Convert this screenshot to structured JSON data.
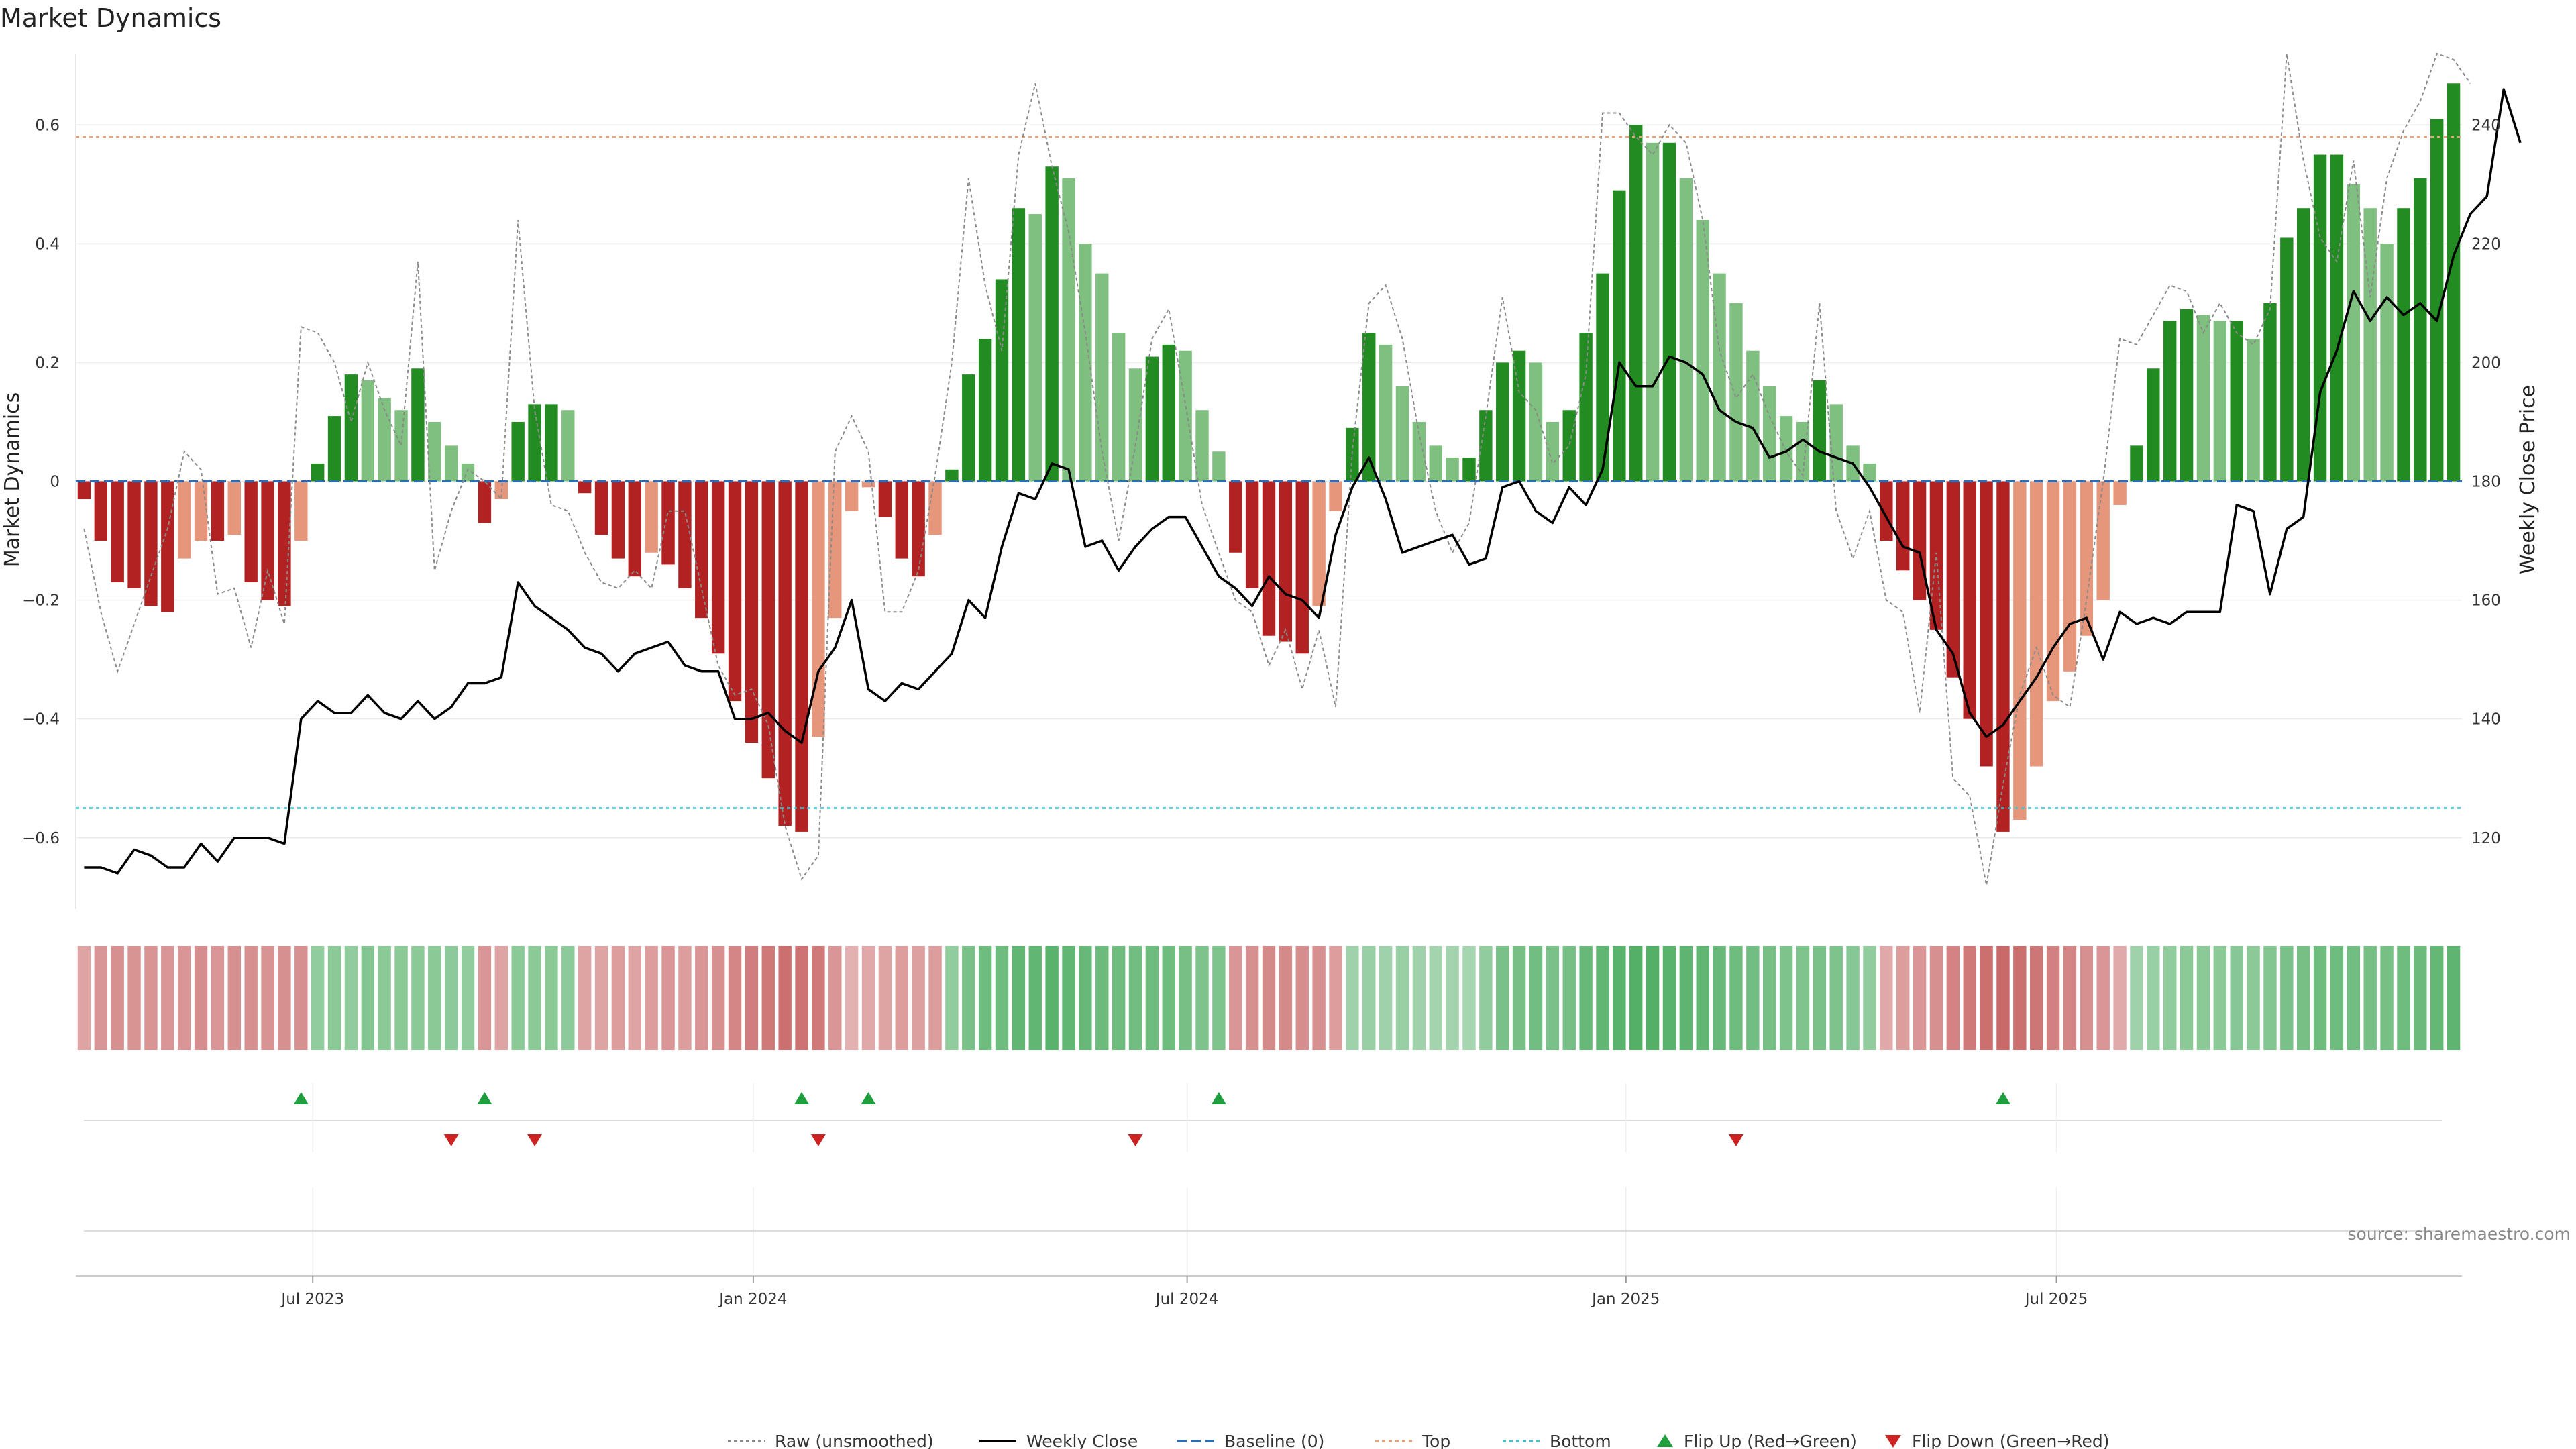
{
  "chart_data": {
    "type": "bar",
    "title": "Market Dynamics",
    "ylabel_left": "Market Dynamics",
    "ylabel_right": "Weekly Close Price",
    "left_ylim": [
      -0.72,
      0.72
    ],
    "right_ylim": [
      108,
      252
    ],
    "left_ticks": [
      -0.6,
      -0.4,
      -0.2,
      0,
      0.2,
      0.4,
      0.6
    ],
    "left_tick_labels": [
      "−0.6",
      "−0.4",
      "−0.2",
      "0",
      "0.2",
      "0.4",
      "0.6"
    ],
    "right_ticks": [
      120,
      140,
      160,
      180,
      200,
      220,
      240
    ],
    "right_tick_labels": [
      "120",
      "140",
      "160",
      "180",
      "200",
      "220",
      "240"
    ],
    "start_date": "2023-03-26",
    "x_ticks": [
      {
        "label": "Jul 2023",
        "week": 14.2
      },
      {
        "label": "Jan 2024",
        "week": 40.6
      },
      {
        "label": "Jul 2024",
        "week": 66.6
      },
      {
        "label": "Jan 2025",
        "week": 92.9
      },
      {
        "label": "Jul 2025",
        "week": 118.7
      }
    ],
    "top_level": 0.58,
    "bottom_level": -0.55,
    "baseline": 0,
    "smoothed": [
      -0.03,
      -0.1,
      -0.17,
      -0.18,
      -0.21,
      -0.22,
      -0.13,
      -0.1,
      -0.1,
      -0.09,
      -0.17,
      -0.2,
      -0.21,
      -0.1,
      0.03,
      0.11,
      0.18,
      0.17,
      0.14,
      0.12,
      0.19,
      0.1,
      0.06,
      0.03,
      -0.07,
      -0.03,
      0.1,
      0.13,
      0.13,
      0.12,
      -0.02,
      -0.09,
      -0.13,
      -0.16,
      -0.12,
      -0.14,
      -0.18,
      -0.23,
      -0.29,
      -0.37,
      -0.44,
      -0.5,
      -0.58,
      -0.59,
      -0.43,
      -0.23,
      -0.05,
      -0.01,
      -0.06,
      -0.13,
      -0.16,
      -0.09,
      0.02,
      0.18,
      0.24,
      0.34,
      0.46,
      0.45,
      0.53,
      0.51,
      0.4,
      0.35,
      0.25,
      0.19,
      0.21,
      0.23,
      0.22,
      0.12,
      0.05,
      -0.12,
      -0.18,
      -0.26,
      -0.27,
      -0.29,
      -0.21,
      -0.05,
      0.09,
      0.25,
      0.23,
      0.16,
      0.1,
      0.06,
      0.04,
      0.04,
      0.12,
      0.2,
      0.22,
      0.2,
      0.1,
      0.12,
      0.25,
      0.35,
      0.49,
      0.6,
      0.57,
      0.57,
      0.51,
      0.44,
      0.35,
      0.3,
      0.22,
      0.16,
      0.11,
      0.1,
      0.17,
      0.13,
      0.06,
      0.03,
      -0.1,
      -0.15,
      -0.2,
      -0.25,
      -0.33,
      -0.4,
      -0.48,
      -0.59,
      -0.57,
      -0.48,
      -0.37,
      -0.32,
      -0.26,
      -0.2,
      -0.04,
      0.06,
      0.19,
      0.27,
      0.29,
      0.28,
      0.27,
      0.27,
      0.24,
      0.3,
      0.41,
      0.46,
      0.55,
      0.55,
      0.5,
      0.46,
      0.4,
      0.46,
      0.51,
      0.61,
      0.67
    ],
    "raw": [
      -0.08,
      -0.22,
      -0.32,
      -0.24,
      -0.16,
      -0.08,
      0.05,
      0.02,
      -0.19,
      -0.18,
      -0.28,
      -0.15,
      -0.24,
      0.26,
      0.25,
      0.2,
      0.1,
      0.2,
      0.12,
      0.06,
      0.37,
      -0.15,
      -0.05,
      0.02,
      0.0,
      -0.03,
      0.44,
      0.12,
      -0.04,
      -0.05,
      -0.12,
      -0.17,
      -0.18,
      -0.15,
      -0.18,
      -0.05,
      -0.05,
      -0.18,
      -0.31,
      -0.36,
      -0.35,
      -0.41,
      -0.58,
      -0.67,
      -0.63,
      0.05,
      0.11,
      0.05,
      -0.22,
      -0.22,
      -0.15,
      0.01,
      0.2,
      0.51,
      0.33,
      0.22,
      0.55,
      0.67,
      0.53,
      0.42,
      0.25,
      0.05,
      -0.1,
      0.06,
      0.24,
      0.29,
      0.13,
      -0.04,
      -0.12,
      -0.2,
      -0.22,
      -0.31,
      -0.25,
      -0.35,
      -0.25,
      -0.38,
      0.05,
      0.3,
      0.33,
      0.24,
      0.08,
      -0.05,
      -0.12,
      -0.07,
      0.11,
      0.31,
      0.15,
      0.12,
      0.03,
      0.06,
      0.18,
      0.62,
      0.62,
      0.58,
      0.55,
      0.6,
      0.57,
      0.44,
      0.22,
      0.14,
      0.18,
      0.11,
      0.05,
      0.01,
      0.3,
      -0.05,
      -0.13,
      -0.05,
      -0.2,
      -0.22,
      -0.39,
      -0.12,
      -0.5,
      -0.53,
      -0.68,
      -0.51,
      -0.36,
      -0.28,
      -0.36,
      -0.38,
      -0.2,
      0.0,
      0.24,
      0.23,
      0.28,
      0.33,
      0.32,
      0.25,
      0.3,
      0.25,
      0.23,
      0.29,
      0.72,
      0.54,
      0.41,
      0.37,
      0.54,
      0.31,
      0.51,
      0.59,
      0.64,
      0.72,
      0.71,
      0.67
    ],
    "close": [
      115,
      115,
      114,
      118,
      117,
      115,
      115,
      119,
      116,
      120,
      120,
      120,
      119,
      140,
      143,
      141,
      141,
      144,
      141,
      140,
      143,
      140,
      142,
      146,
      146,
      147,
      163,
      159,
      157,
      155,
      152,
      151,
      148,
      151,
      152,
      153,
      149,
      148,
      148,
      140,
      140,
      141,
      138,
      136,
      148,
      152,
      160,
      145,
      143,
      146,
      145,
      148,
      151,
      160,
      157,
      169,
      178,
      177,
      183,
      182,
      169,
      170,
      165,
      169,
      172,
      174,
      174,
      169,
      164,
      162,
      159,
      164,
      161,
      160,
      157,
      171,
      179,
      184,
      177,
      168,
      169,
      170,
      171,
      166,
      167,
      179,
      180,
      175,
      173,
      179,
      176,
      182,
      200,
      196,
      196,
      201,
      200,
      198,
      192,
      190,
      189,
      184,
      185,
      187,
      185,
      184,
      183,
      179,
      174,
      169,
      168,
      155,
      151,
      141,
      137,
      139,
      143,
      147,
      152,
      156,
      157,
      150,
      158,
      156,
      157,
      156,
      158,
      158,
      158,
      176,
      175,
      161,
      172,
      174,
      195,
      202,
      212,
      207,
      211,
      208,
      210,
      207,
      218,
      225,
      228,
      246,
      237
    ],
    "strength": [
      0.45,
      0.56,
      0.6,
      0.58,
      0.57,
      0.55,
      0.55,
      0.62,
      0.55,
      0.6,
      0.6,
      0.58,
      0.6,
      0.6,
      0.55,
      0.6,
      0.55,
      0.65,
      0.6,
      0.6,
      0.6,
      0.6,
      0.58,
      0.55,
      0.55,
      0.45,
      0.6,
      0.6,
      0.6,
      0.58,
      0.45,
      0.45,
      0.5,
      0.45,
      0.5,
      0.55,
      0.5,
      0.55,
      0.6,
      0.68,
      0.75,
      0.78,
      0.85,
      0.82,
      0.78,
      0.55,
      0.35,
      0.42,
      0.45,
      0.5,
      0.48,
      0.5,
      0.55,
      0.72,
      0.8,
      0.8,
      0.9,
      0.9,
      0.95,
      0.9,
      0.85,
      0.82,
      0.8,
      0.78,
      0.8,
      0.8,
      0.75,
      0.7,
      0.68,
      0.55,
      0.6,
      0.65,
      0.65,
      0.62,
      0.6,
      0.5,
      0.45,
      0.5,
      0.45,
      0.5,
      0.45,
      0.42,
      0.42,
      0.4,
      0.55,
      0.72,
      0.75,
      0.78,
      0.72,
      0.75,
      0.85,
      0.9,
      0.95,
      1.0,
      1.0,
      0.95,
      0.92,
      0.9,
      0.85,
      0.8,
      0.78,
      0.75,
      0.7,
      0.68,
      0.72,
      0.7,
      0.62,
      0.55,
      0.42,
      0.5,
      0.55,
      0.6,
      0.7,
      0.78,
      0.85,
      0.9,
      0.85,
      0.8,
      0.72,
      0.68,
      0.6,
      0.55,
      0.4,
      0.45,
      0.5,
      0.55,
      0.6,
      0.6,
      0.6,
      0.62,
      0.6,
      0.65,
      0.72,
      0.75,
      0.8,
      0.8,
      0.78,
      0.75,
      0.75,
      0.8,
      0.82,
      0.88,
      0.92
    ],
    "flip_up_weeks": [
      13,
      24,
      43,
      47,
      68,
      115
    ],
    "flip_down_weeks": [
      22,
      27,
      44,
      63,
      99
    ],
    "colors": {
      "green_strong": "#228B22",
      "green_light": "#7FBF7F",
      "red_strong": "#B22222",
      "red_light": "#E6967A",
      "close_line": "#000000",
      "raw_line": "#8A8A8A",
      "baseline": "#2C6DB5",
      "top": "#E8A075",
      "bottom": "#3FC1D0",
      "flip_up": "#1E9E3C",
      "flip_down": "#CC2222",
      "heat_green": "#2E9E45",
      "heat_red": "#B83838"
    },
    "legend": [
      {
        "key": "raw",
        "label": "Raw (unsmoothed)"
      },
      {
        "key": "close",
        "label": "Weekly Close"
      },
      {
        "key": "baseline",
        "label": "Baseline (0)"
      },
      {
        "key": "top",
        "label": "Top"
      },
      {
        "key": "bottom",
        "label": "Bottom"
      },
      {
        "key": "flip_up",
        "label": "Flip Up (Red→Green)"
      },
      {
        "key": "flip_down",
        "label": "Flip Down (Green→Red)"
      }
    ],
    "source": "source: sharemaestro.com"
  }
}
